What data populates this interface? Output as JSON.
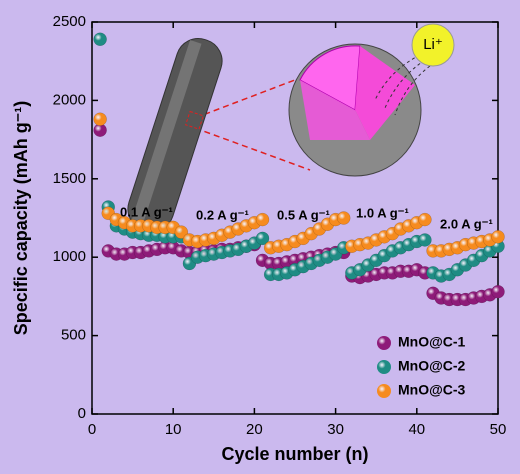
{
  "chart_data": {
    "type": "scatter",
    "xlabel": "Cycle number (n)",
    "ylabel": "Specific capacity (mAh g⁻¹)",
    "inset_label": "Li⁺",
    "annotations": [
      "0.1 A g⁻¹",
      "0.2 A g⁻¹",
      "0.5 A g⁻¹",
      "1.0 A g⁻¹",
      "2.0 A g⁻¹"
    ],
    "x": [
      1,
      2,
      3,
      4,
      5,
      6,
      7,
      8,
      9,
      10,
      11,
      12,
      13,
      14,
      15,
      16,
      17,
      18,
      19,
      20,
      21,
      22,
      23,
      24,
      25,
      26,
      27,
      28,
      29,
      30,
      31,
      32,
      33,
      34,
      35,
      36,
      37,
      38,
      39,
      40,
      41,
      42,
      43,
      44,
      45,
      46,
      47,
      48,
      49,
      50
    ],
    "series": [
      {
        "name": "MnO@C-1",
        "color": "#8e1b79",
        "values": [
          1810,
          1040,
          1020,
          1020,
          1030,
          1030,
          1040,
          1050,
          1060,
          1060,
          1040,
          1030,
          1030,
          1040,
          1040,
          1050,
          1050,
          1060,
          1070,
          1080,
          980,
          960,
          960,
          970,
          980,
          990,
          1000,
          1010,
          1020,
          1030,
          1030,
          880,
          870,
          880,
          890,
          900,
          900,
          910,
          910,
          920,
          900,
          770,
          740,
          730,
          730,
          730,
          740,
          750,
          760,
          780
        ]
      },
      {
        "name": "MnO@C-2",
        "color": "#1f8c84",
        "values": [
          2390,
          1320,
          1200,
          1180,
          1160,
          1150,
          1140,
          1140,
          1130,
          1130,
          1130,
          960,
          1000,
          1010,
          1020,
          1030,
          1040,
          1050,
          1070,
          1090,
          1120,
          890,
          890,
          900,
          920,
          940,
          960,
          980,
          1000,
          1020,
          1060,
          900,
          920,
          950,
          980,
          1010,
          1040,
          1060,
          1080,
          1100,
          1110,
          900,
          880,
          890,
          920,
          950,
          980,
          1010,
          1040,
          1070
        ]
      },
      {
        "name": "MnO@C-3",
        "color": "#f68b1f",
        "values": [
          1880,
          1280,
          1240,
          1220,
          1200,
          1200,
          1200,
          1190,
          1190,
          1190,
          1160,
          1110,
          1100,
          1110,
          1120,
          1140,
          1160,
          1180,
          1200,
          1220,
          1240,
          1060,
          1070,
          1080,
          1100,
          1120,
          1150,
          1180,
          1210,
          1240,
          1250,
          1070,
          1080,
          1090,
          1110,
          1130,
          1150,
          1180,
          1200,
          1220,
          1240,
          1040,
          1040,
          1050,
          1060,
          1080,
          1090,
          1100,
          1110,
          1130
        ]
      }
    ],
    "xlim": [
      0,
      50
    ],
    "xticks": [
      0,
      10,
      20,
      30,
      40,
      50
    ],
    "ylim": [
      0,
      2500
    ],
    "yticks": [
      0,
      500,
      1000,
      1500,
      2000,
      2500
    ]
  }
}
